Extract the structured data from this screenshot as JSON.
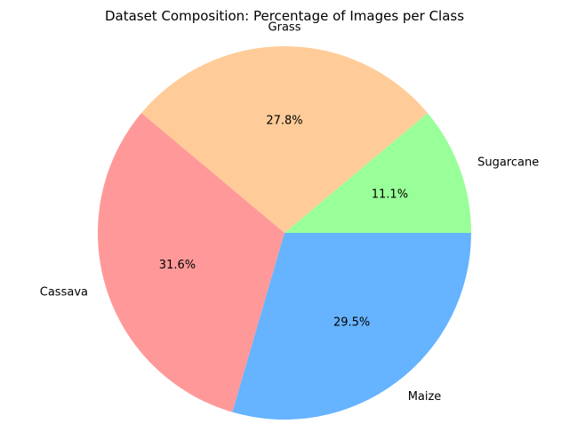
{
  "chart_data": {
    "type": "pie",
    "title": "Dataset Composition: Percentage of Images per Class",
    "categories": [
      "Sugarcane",
      "Grass",
      "Cassava",
      "Maize"
    ],
    "values": [
      11.1,
      27.8,
      31.6,
      29.5
    ],
    "value_labels": [
      "11.1%",
      "27.8%",
      "31.6%",
      "29.5%"
    ],
    "colors": [
      "#99ff99",
      "#ffcc99",
      "#ff9999",
      "#66b3ff"
    ],
    "start_angle_deg": 0,
    "direction": "counterclockwise",
    "legend": false
  }
}
